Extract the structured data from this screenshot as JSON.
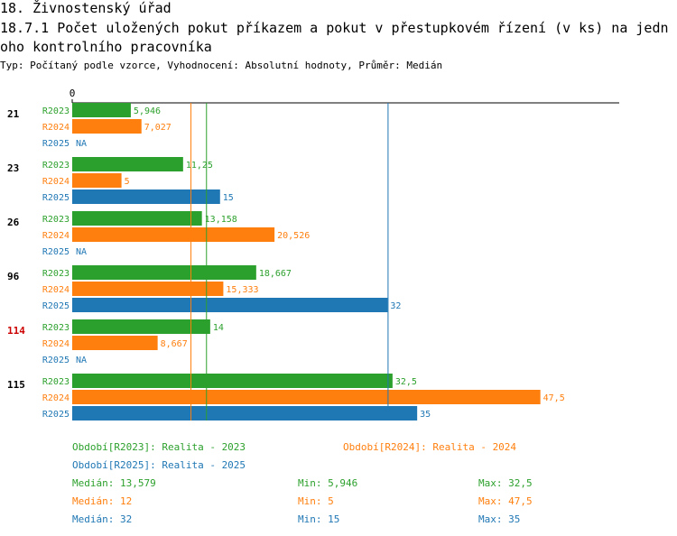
{
  "title": "18. Živnostenský úřad",
  "subtitle": "18.7.1 Počet uložených pokut příkazem a pokut v přestupkovém řízení (v ks) na jednoho kontrolního pracovníka",
  "meta_line": "Typ: Počítaný podle vzorce, Vyhodnocení: Absolutní hodnoty, Průměr: Medián",
  "colors": {
    "R2023": "#2ca02c",
    "R2024": "#ff7f0e",
    "R2025": "#1f77b4",
    "highlight": "#cc0000"
  },
  "chart_data": {
    "type": "bar",
    "orientation": "horizontal",
    "x_tick_labels": [
      "0"
    ],
    "xlim": [
      0,
      55.5
    ],
    "categories": [
      "21",
      "23",
      "26",
      "96",
      "114",
      "115"
    ],
    "highlighted_category": "114",
    "series": [
      {
        "name": "R2023",
        "values": [
          5.946,
          11.25,
          13.158,
          18.667,
          14,
          32.5
        ],
        "labels": [
          "5,946",
          "11,25",
          "13,158",
          "18,667",
          "14",
          "32,5"
        ]
      },
      {
        "name": "R2024",
        "values": [
          7.027,
          5,
          20.526,
          15.333,
          8.667,
          47.5
        ],
        "labels": [
          "7,027",
          "5",
          "20,526",
          "15,333",
          "8,667",
          "47,5"
        ]
      },
      {
        "name": "R2025",
        "values": [
          null,
          15,
          null,
          32,
          null,
          35
        ],
        "labels": [
          "NA",
          "15",
          "NA",
          "32",
          "NA",
          "35"
        ]
      }
    ],
    "reference_lines": [
      {
        "series": "R2024",
        "value": 12
      },
      {
        "series": "R2023",
        "value": 13.579
      },
      {
        "series": "R2025",
        "value": 32
      }
    ]
  },
  "legend": {
    "r2023": "Období[R2023]: Realita - 2023",
    "r2024": "Období[R2024]: Realita - 2024",
    "r2025": "Období[R2025]: Realita - 2025"
  },
  "stats": [
    {
      "series": "R2023",
      "median": "Medián: 13,579",
      "min": "Min: 5,946",
      "max": "Max: 32,5"
    },
    {
      "series": "R2024",
      "median": "Medián: 12",
      "min": "Min: 5",
      "max": "Max: 47,5"
    },
    {
      "series": "R2025",
      "median": "Medián: 32",
      "min": "Min: 15",
      "max": "Max: 35"
    }
  ]
}
